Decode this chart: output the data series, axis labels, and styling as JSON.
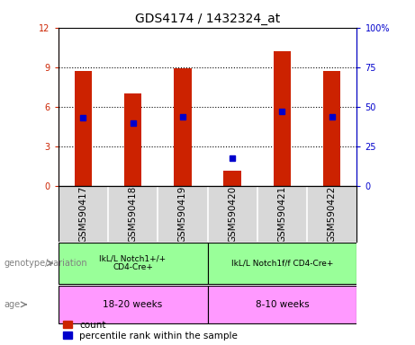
{
  "title": "GDS4174 / 1432324_at",
  "samples": [
    "GSM590417",
    "GSM590418",
    "GSM590419",
    "GSM590420",
    "GSM590421",
    "GSM590422"
  ],
  "counts": [
    8.7,
    7.0,
    8.9,
    1.2,
    10.2,
    8.7
  ],
  "percentile_ranks": [
    43,
    40,
    44,
    18,
    47,
    44
  ],
  "bar_color": "#cc2200",
  "dot_color": "#0000cc",
  "ylim_left": [
    0,
    12
  ],
  "ylim_right": [
    0,
    100
  ],
  "yticks_left": [
    0,
    3,
    6,
    9,
    12
  ],
  "yticks_right": [
    0,
    25,
    50,
    75,
    100
  ],
  "yticklabels_left": [
    "0",
    "3",
    "6",
    "9",
    "12"
  ],
  "yticklabels_right": [
    "0",
    "25",
    "50",
    "75",
    "100%"
  ],
  "genotype_groups": [
    {
      "label": "IkL/L Notch1+/+\nCD4-Cre+",
      "start": 0,
      "end": 3,
      "color": "#99ff99"
    },
    {
      "label": "IkL/L Notch1f/f CD4-Cre+",
      "start": 3,
      "end": 6,
      "color": "#99ff99"
    }
  ],
  "age_groups": [
    {
      "label": "18-20 weeks",
      "start": 0,
      "end": 3,
      "color": "#ff99ff"
    },
    {
      "label": "8-10 weeks",
      "start": 3,
      "end": 6,
      "color": "#ff99ff"
    }
  ],
  "genotype_label": "genotype/variation",
  "age_label": "age",
  "legend_count_label": "count",
  "legend_percentile_label": "percentile rank within the sample",
  "bar_width": 0.35,
  "sample_bg": "#d8d8d8",
  "background_color": "#ffffff"
}
